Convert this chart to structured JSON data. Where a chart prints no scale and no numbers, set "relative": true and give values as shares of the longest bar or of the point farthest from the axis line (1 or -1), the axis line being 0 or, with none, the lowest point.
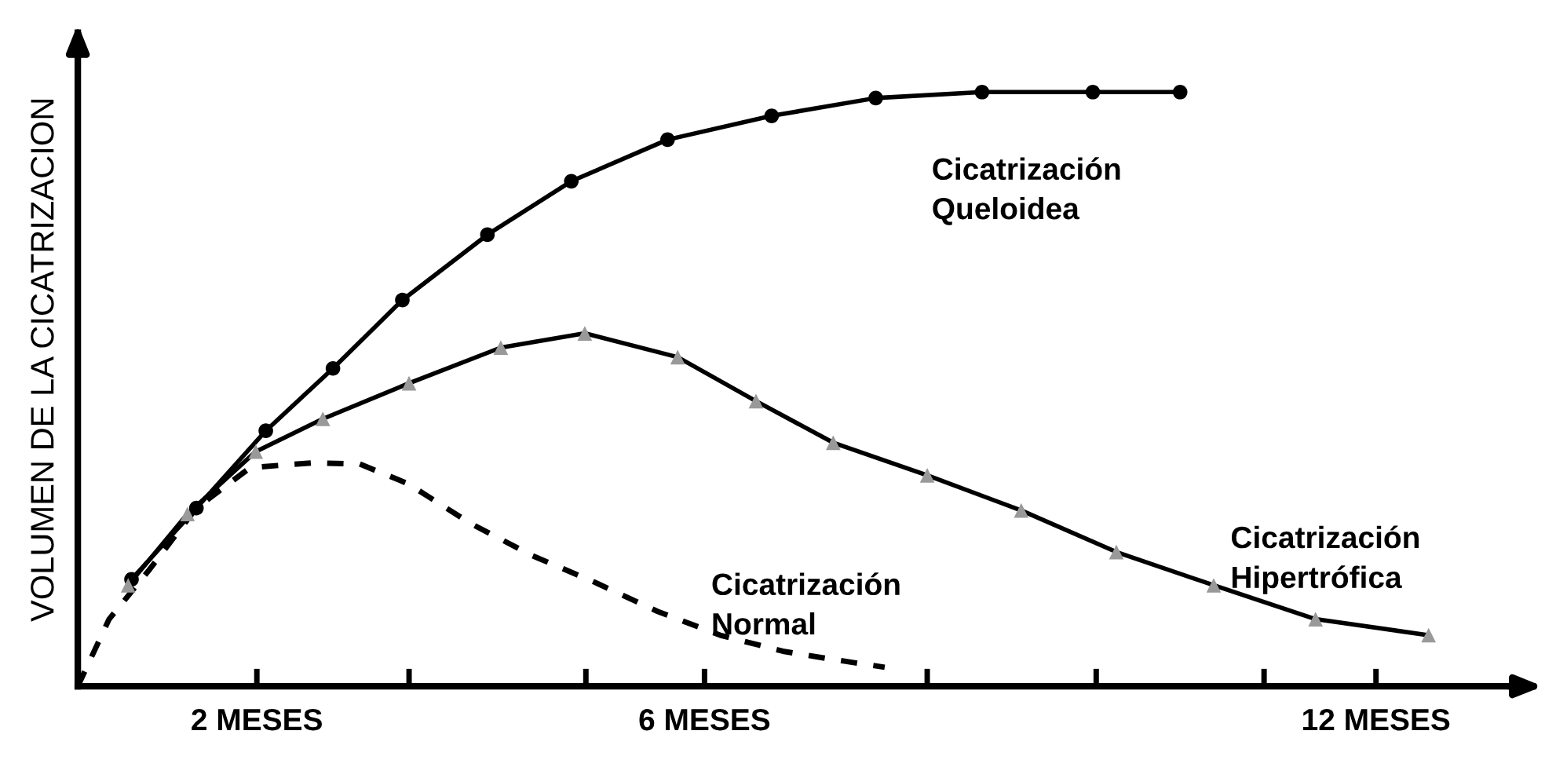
{
  "chart_data": {
    "type": "line",
    "relative": true,
    "ylabel": "VOLUMEN DE LA CICATRIZACION",
    "tick_labels": "x",
    "grid": false,
    "legend": false,
    "xlim": [
      0.4,
      13.4
    ],
    "xticks": [
      {
        "value": 2,
        "label": "2 MESES"
      },
      {
        "value": 3.36,
        "label": null
      },
      {
        "value": 4.94,
        "label": null
      },
      {
        "value": 6,
        "label": "6 MESES"
      },
      {
        "value": 7.99,
        "label": null
      },
      {
        "value": 9.5,
        "label": null
      },
      {
        "value": 11.0,
        "label": null
      },
      {
        "value": 12,
        "label": "12 MESES"
      }
    ],
    "series": [
      {
        "name": "Cicatrización\nQueloidea",
        "color": "#000000",
        "marker": "circle",
        "line_style": "solid",
        "x": [
          0.88,
          1.46,
          2.08,
          2.68,
          3.3,
          4.06,
          4.81,
          5.67,
          6.6,
          7.53,
          8.48,
          9.47,
          10.25
        ],
        "values": [
          0.18,
          0.3,
          0.43,
          0.535,
          0.65,
          0.76,
          0.85,
          0.92,
          0.96,
          0.99,
          1.0,
          1.0,
          1.0
        ]
      },
      {
        "name": "Cicatrización\nHipertrófica",
        "color": "#000000",
        "colors": [
          "#999999",
          "#999999",
          "#999999",
          "#999999",
          "#999999",
          "#999999",
          "#999999",
          "#999999",
          "#999999",
          "#999999",
          "#999999",
          "#999999",
          "#999999",
          "#999999",
          "#999999",
          "#999999"
        ],
        "marker": "triangle",
        "line_style": "solid",
        "x": [
          0.85,
          1.38,
          1.99,
          2.59,
          3.36,
          4.18,
          4.93,
          5.76,
          6.46,
          7.15,
          7.99,
          8.83,
          9.68,
          10.55,
          11.46,
          12.47
        ],
        "values": [
          0.17,
          0.29,
          0.395,
          0.45,
          0.51,
          0.57,
          0.594,
          0.554,
          0.48,
          0.41,
          0.355,
          0.296,
          0.226,
          0.17,
          0.113,
          0.086
        ]
      },
      {
        "name": "Cicatrización\nNormal",
        "color": "#000000",
        "marker": "none",
        "line_style": "dashed",
        "x": [
          0.4,
          0.68,
          1.03,
          1.46,
          1.94,
          2.5,
          2.92,
          3.35,
          3.91,
          4.46,
          5.02,
          5.58,
          6.14,
          6.7,
          7.12,
          7.61
        ],
        "values": [
          0,
          0.113,
          0.194,
          0.3,
          0.368,
          0.376,
          0.374,
          0.341,
          0.274,
          0.22,
          0.175,
          0.126,
          0.086,
          0.059,
          0.046,
          0.032
        ]
      }
    ]
  }
}
